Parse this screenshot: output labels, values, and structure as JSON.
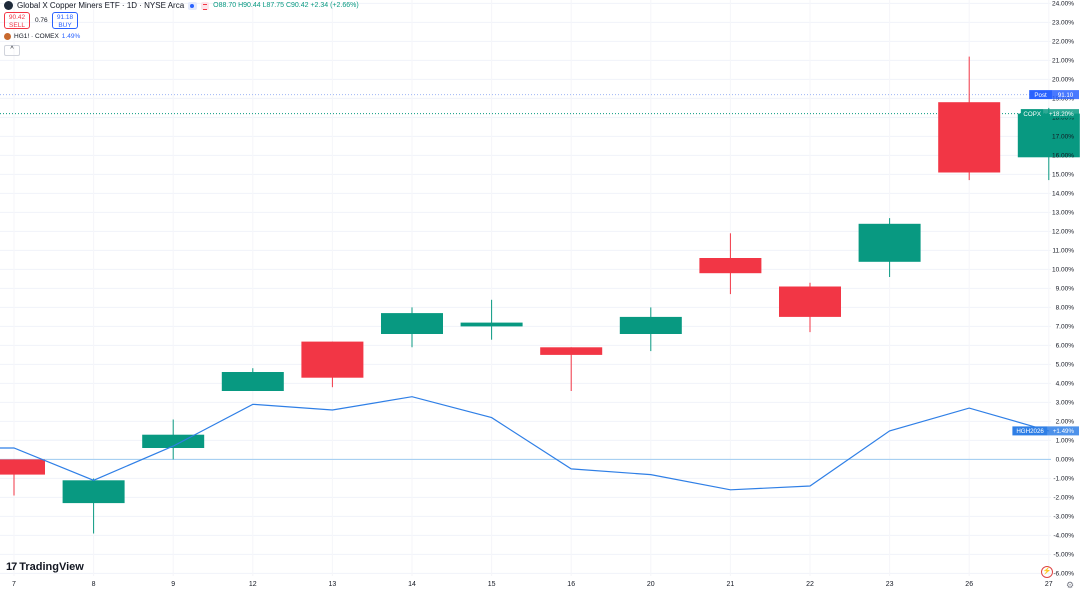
{
  "header": {
    "title": "Global X Copper Miners ETF · 1D · NYSE Arca",
    "ohlc": "O88.70 H90.44 L87.75 C90.42 +2.34 (+2.66%)"
  },
  "quote": {
    "sell_price": "90.42",
    "sell_label": "SELL",
    "spread": "0.76",
    "buy_price": "91.18",
    "buy_label": "BUY"
  },
  "compare": {
    "label": "HG1! · COMEX",
    "value": "1.49%"
  },
  "collapse_glyph": "^",
  "brand": "TradingView",
  "brand_mark": "17",
  "icons": {
    "settings": "gear-icon",
    "lightning": "lightning-icon"
  },
  "colors": {
    "up": "#089981",
    "down": "#f23645",
    "compare_line": "#2f7fe6",
    "post": "#2962ff"
  },
  "badges": {
    "post_label": "Post",
    "post_value": "91.10",
    "copx_label": "COPX",
    "copx_value": "+18.20%",
    "hg_label": "HGH2026",
    "hg_value": "+1.49%"
  },
  "chart_data": {
    "type": "candlestick",
    "x_labels": [
      "7",
      "8",
      "9",
      "12",
      "13",
      "14",
      "15",
      "16",
      "20",
      "21",
      "22",
      "23",
      "26",
      "27"
    ],
    "y_ticks": [
      "24.00%",
      "23.00%",
      "22.00%",
      "21.00%",
      "20.00%",
      "19.00%",
      "18.00%",
      "17.00%",
      "16.00%",
      "15.00%",
      "14.00%",
      "13.00%",
      "12.00%",
      "11.00%",
      "10.00%",
      "9.00%",
      "8.00%",
      "7.00%",
      "6.00%",
      "5.00%",
      "4.00%",
      "3.00%",
      "2.00%",
      "1.00%",
      "0.00%",
      "-1.00%",
      "-2.00%",
      "-3.00%",
      "-4.00%",
      "-5.00%",
      "-6.00%"
    ],
    "ylim": [
      -6.2,
      24.2
    ],
    "candles": [
      {
        "x": "7",
        "open": 0.0,
        "high": 0.0,
        "low": -1.9,
        "close": -0.8
      },
      {
        "x": "8",
        "open": -2.3,
        "high": -1.0,
        "low": -3.9,
        "close": -1.1
      },
      {
        "x": "9",
        "open": 0.6,
        "high": 2.1,
        "low": 0.0,
        "close": 1.3
      },
      {
        "x": "12",
        "open": 3.6,
        "high": 4.8,
        "low": 3.6,
        "close": 4.6
      },
      {
        "x": "13",
        "open": 6.2,
        "high": 6.2,
        "low": 3.8,
        "close": 4.3
      },
      {
        "x": "14",
        "open": 6.6,
        "high": 8.0,
        "low": 5.9,
        "close": 7.7
      },
      {
        "x": "15",
        "open": 7.0,
        "high": 8.4,
        "low": 6.3,
        "close": 7.2
      },
      {
        "x": "16",
        "open": 5.9,
        "high": 5.9,
        "low": 3.6,
        "close": 5.5
      },
      {
        "x": "20",
        "open": 6.6,
        "high": 8.0,
        "low": 5.7,
        "close": 7.5
      },
      {
        "x": "21",
        "open": 10.6,
        "high": 11.9,
        "low": 8.7,
        "close": 9.8
      },
      {
        "x": "22",
        "open": 9.1,
        "high": 9.3,
        "low": 6.7,
        "close": 7.5
      },
      {
        "x": "23",
        "open": 10.4,
        "high": 12.7,
        "low": 9.6,
        "close": 12.4
      },
      {
        "x": "26",
        "open": 18.8,
        "high": 21.2,
        "low": 14.7,
        "close": 15.1
      },
      {
        "x": "27",
        "open": 15.9,
        "high": 18.5,
        "low": 14.7,
        "close": 18.2
      }
    ],
    "compare_series": {
      "name": "HGH2026",
      "values": [
        0.6,
        -1.1,
        0.7,
        2.9,
        2.6,
        3.3,
        2.2,
        -0.5,
        -0.8,
        -1.6,
        -1.4,
        1.5,
        2.7,
        1.5
      ]
    },
    "post_price_level_pct": 19.2,
    "zero_line_pct": 0.0
  }
}
